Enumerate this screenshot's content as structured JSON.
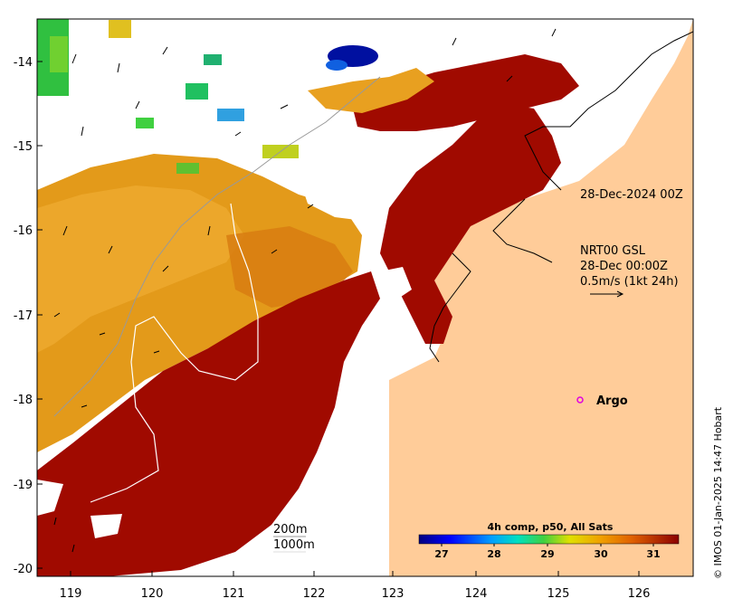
{
  "map": {
    "axis": {
      "x_ticks": [
        "119",
        "120",
        "121",
        "122",
        "123",
        "124",
        "125",
        "126"
      ],
      "y_ticks": [
        "-14",
        "-15",
        "-16",
        "-17",
        "-18",
        "-19",
        "-20"
      ]
    },
    "date_label": "28-Dec-2024 00Z",
    "current_info": {
      "line1": "NRT00 GSL",
      "line2": "28-Dec 00:00Z",
      "line3": "0.5m/s (1kt 24h)"
    },
    "argo_label": "Argo",
    "contours": {
      "c200": "200m",
      "c1000": "1000m"
    },
    "colorbar": {
      "title": "4h comp, p50, All Sats",
      "ticks": [
        "27",
        "28",
        "29",
        "30",
        "31"
      ]
    },
    "credit": "© IMOS 01-Jan-2025 14:47 Hobart",
    "colors": {
      "land": "#FFCC99",
      "hot": "#A00A00",
      "warm": "#E08A10",
      "argo": "#E000E0"
    }
  }
}
